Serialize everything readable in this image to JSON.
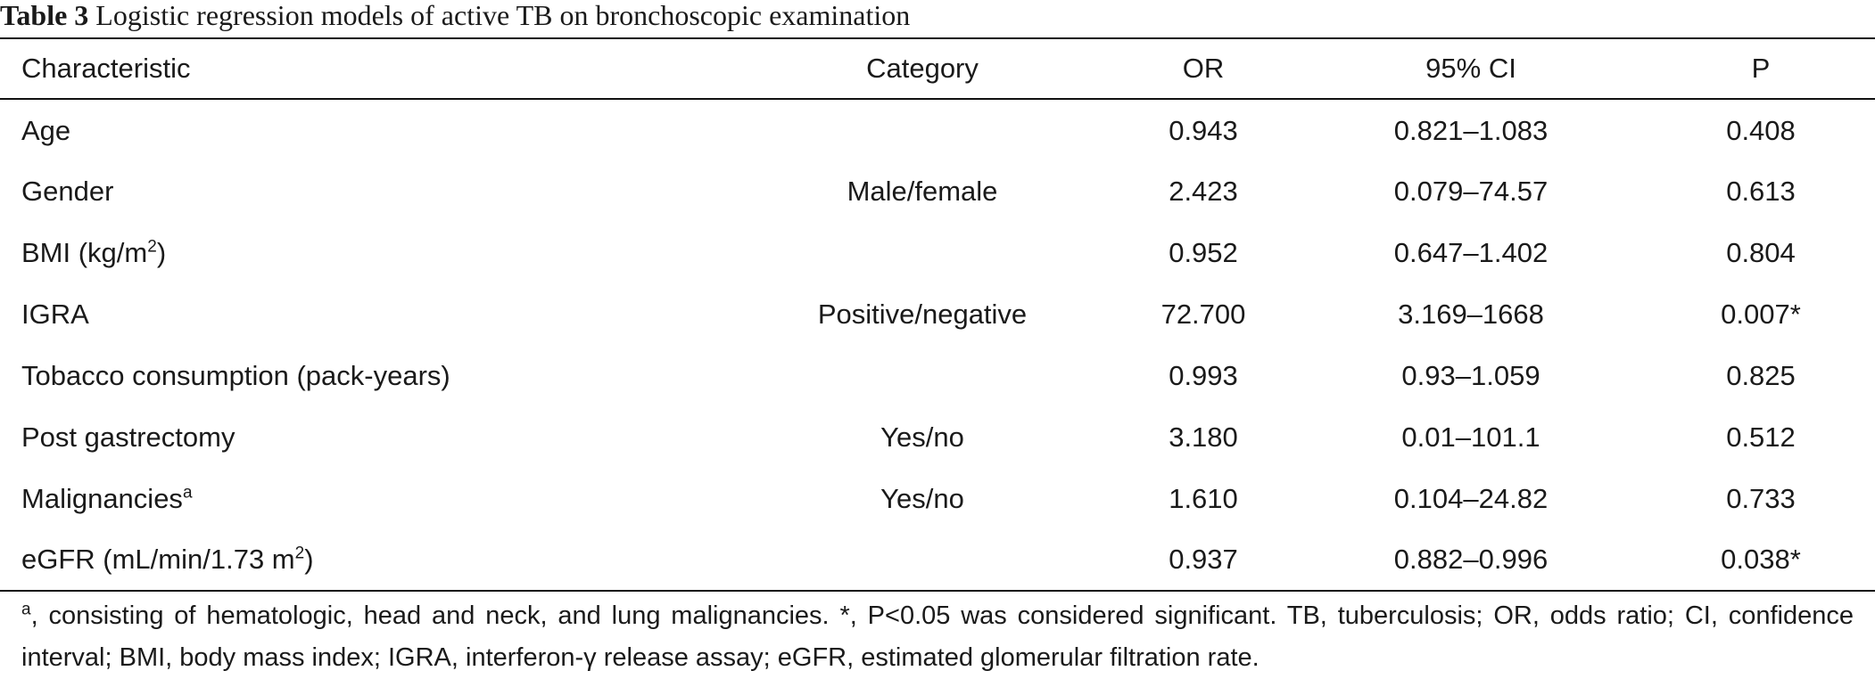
{
  "table": {
    "caption_label": "Table 3",
    "caption_title": "Logistic regression models of active TB on bronchoscopic examination",
    "headers": [
      "Characteristic",
      "Category",
      "OR",
      "95% CI",
      "P"
    ],
    "rows": [
      {
        "characteristic": "Age",
        "sup": "",
        "suffix": "",
        "category": "",
        "or": "0.943",
        "ci": "0.821–1.083",
        "p": "0.408"
      },
      {
        "characteristic": "Gender",
        "sup": "",
        "suffix": "",
        "category": "Male/female",
        "or": "2.423",
        "ci": "0.079–74.57",
        "p": "0.613"
      },
      {
        "characteristic": "BMI (kg/m",
        "sup": "2",
        "suffix": ")",
        "category": "",
        "or": "0.952",
        "ci": "0.647–1.402",
        "p": "0.804"
      },
      {
        "characteristic": "IGRA",
        "sup": "",
        "suffix": "",
        "category": "Positive/negative",
        "or": "72.700",
        "ci": "3.169–1668",
        "p": "0.007*"
      },
      {
        "characteristic": "Tobacco consumption (pack-years)",
        "sup": "",
        "suffix": "",
        "category": "",
        "or": "0.993",
        "ci": "0.93–1.059",
        "p": "0.825"
      },
      {
        "characteristic": "Post gastrectomy",
        "sup": "",
        "suffix": "",
        "category": "Yes/no",
        "or": "3.180",
        "ci": "0.01–101.1",
        "p": "0.512"
      },
      {
        "characteristic": "Malignancies",
        "sup": "a",
        "suffix": "",
        "category": "Yes/no",
        "or": "1.610",
        "ci": "0.104–24.82",
        "p": "0.733"
      },
      {
        "characteristic": "eGFR (mL/min/1.73 m",
        "sup": "2",
        "suffix": ")",
        "category": "",
        "or": "0.937",
        "ci": "0.882–0.996",
        "p": "0.038*"
      }
    ],
    "footnote_sup": "a",
    "footnote_text": ", consisting of hematologic, head and neck, and lung malignancies. *, P<0.05 was considered significant. TB, tuberculosis; OR, odds ratio; CI, confidence interval; BMI, body mass index; IGRA, interferon-γ release assay; eGFR, estimated glomerular filtration rate."
  }
}
